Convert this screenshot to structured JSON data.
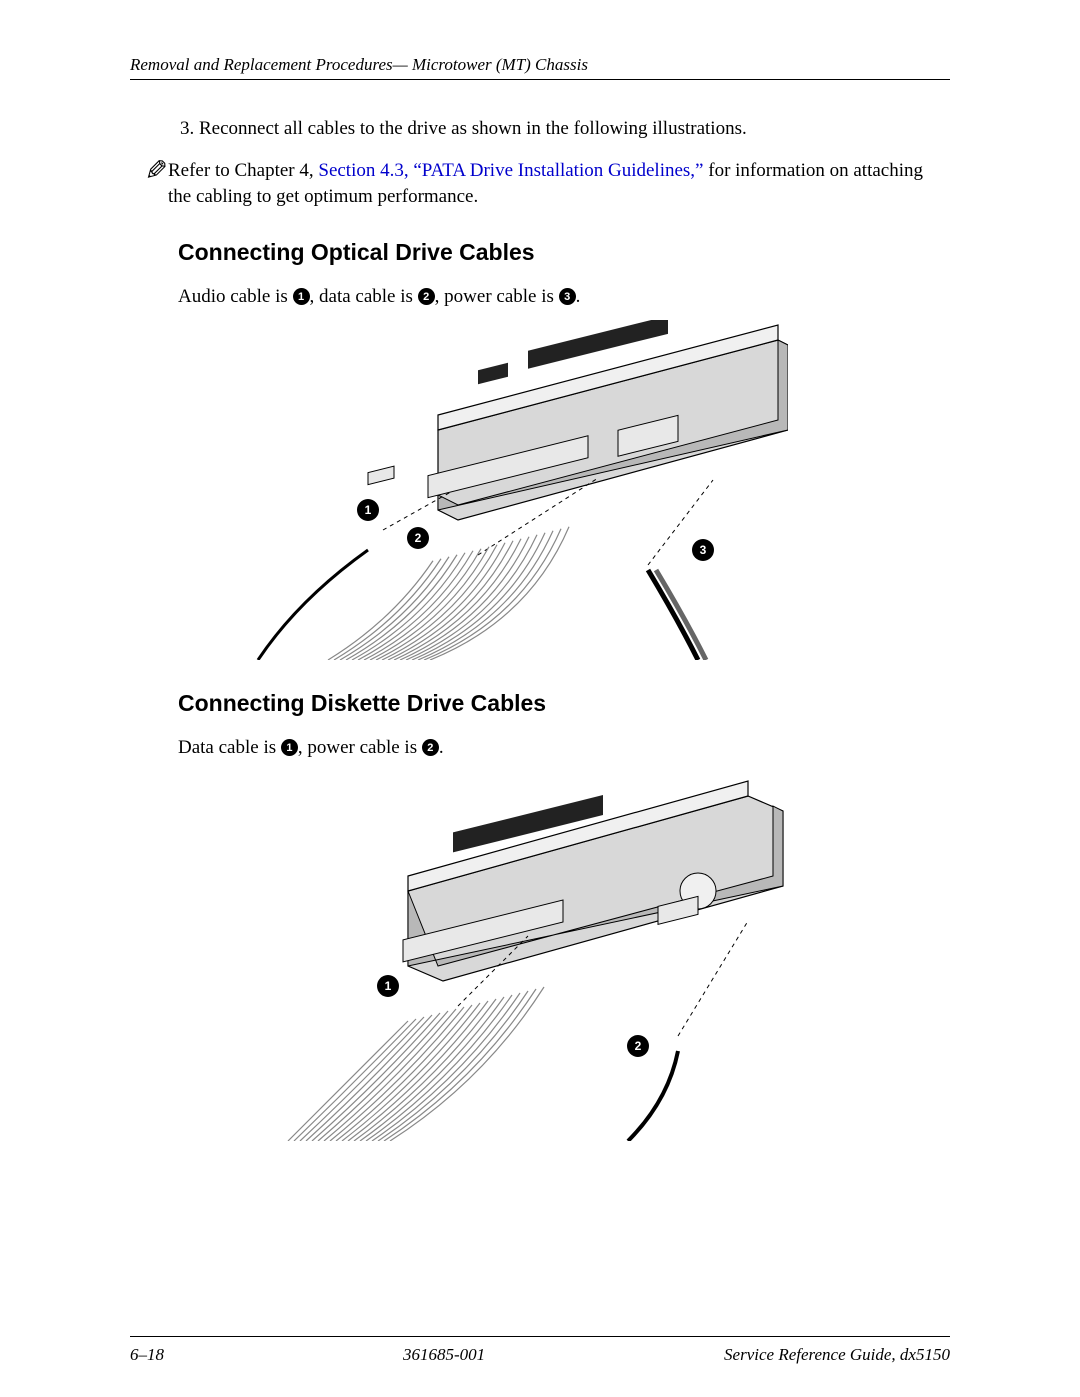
{
  "header": {
    "section_title": "Removal and Replacement Procedures— Microtower (MT) Chassis"
  },
  "step": {
    "number": "3.",
    "text": "Reconnect all cables to the drive as shown in the following illustrations."
  },
  "note": {
    "prefix": "Refer to Chapter 4, ",
    "link_text": "Section 4.3, “PATA Drive Installation Guidelines,”",
    "suffix": " for information on attaching the cabling to get optimum performance.",
    "link_color": "#0000cc"
  },
  "optical": {
    "heading": "Connecting Optical Drive Cables",
    "desc_parts": [
      "Audio cable is ",
      ", data cable is ",
      ", power cable is ",
      "."
    ],
    "callouts": [
      "1",
      "2",
      "3"
    ]
  },
  "diskette": {
    "heading": "Connecting Diskette Drive Cables",
    "desc_parts": [
      "Data cable is ",
      ", power cable is ",
      "."
    ],
    "callouts": [
      "1",
      "2"
    ]
  },
  "figures": {
    "drive_fill": "#d8d8d8",
    "drive_light": "#f0f0f0",
    "drive_dark": "#b8b8b8",
    "stroke": "#000000",
    "cable_fill": "#c8c8c8",
    "connector_fill": "#e8e8e8",
    "callout_bg": "#000000",
    "callout_fg": "#ffffff",
    "dash": "4,4"
  },
  "footer": {
    "page": "6–18",
    "docnum": "361685-001",
    "guide": "Service Reference Guide, dx5150"
  }
}
